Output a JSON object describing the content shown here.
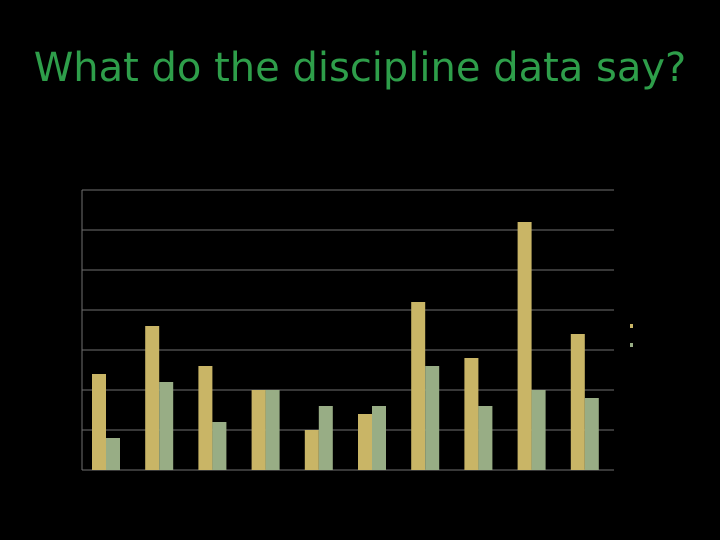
{
  "slide": {
    "title": "What do the discipline data say?"
  },
  "colors": {
    "background": "#000000",
    "title": "#2e9e4a",
    "gridline": "#6f6f6f",
    "series_a": "#c9b566",
    "series_b": "#98ad85"
  },
  "chart_data": {
    "type": "bar",
    "title": "",
    "xlabel": "",
    "ylabel": "",
    "categories": [
      "",
      "",
      "",
      "",
      "",
      "",
      "",
      "",
      "",
      ""
    ],
    "ylim": [
      0,
      7
    ],
    "grid": true,
    "legend": "right (text not legible)",
    "series": [
      {
        "name": "",
        "color": "#c9b566",
        "values": [
          2.4,
          3.6,
          2.6,
          2.0,
          1.0,
          1.4,
          4.2,
          2.8,
          6.2,
          3.4
        ]
      },
      {
        "name": "",
        "color": "#98ad85",
        "values": [
          0.8,
          2.2,
          1.2,
          2.0,
          1.6,
          1.6,
          2.6,
          1.6,
          2.0,
          1.8
        ]
      }
    ]
  }
}
